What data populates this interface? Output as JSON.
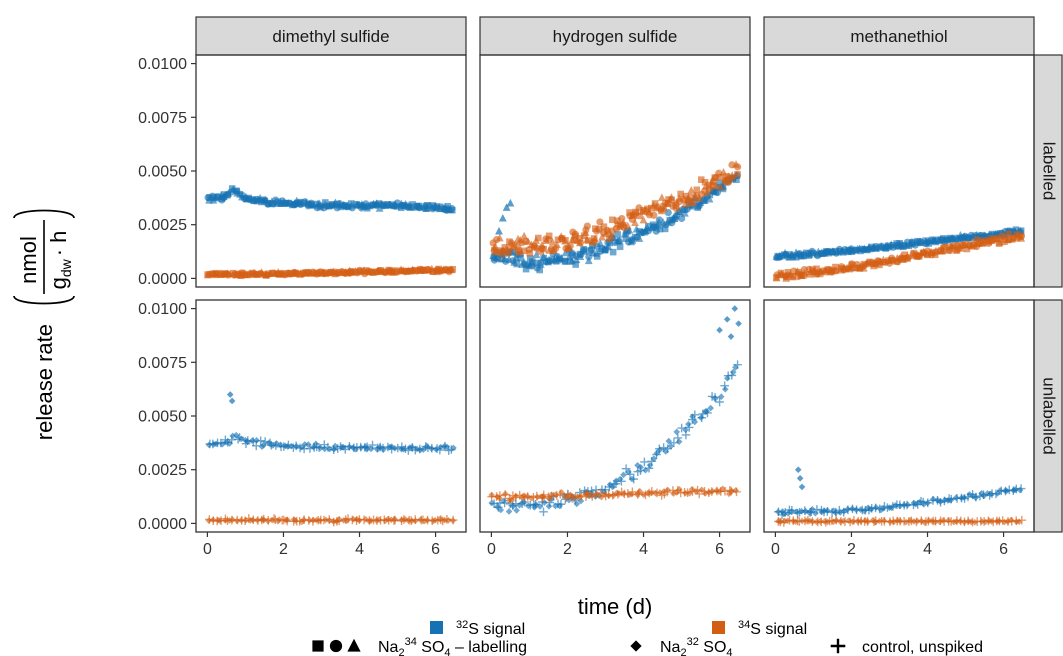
{
  "chart_data": {
    "type": "scatter",
    "facet_columns": [
      "dimethyl sulfide",
      "hydrogen sulfide",
      "methanethiol"
    ],
    "facet_rows": [
      "labelled",
      "unlabelled"
    ],
    "xlabel": "time (d)",
    "ylabel": {
      "prefix": "release rate",
      "numerator": "nmol",
      "denominator_main": "g",
      "denominator_sub": "dw",
      "denominator_tail": "· h"
    },
    "x_ticks": [
      "0",
      "2",
      "4",
      "6"
    ],
    "x_tick_values": [
      0,
      2,
      4,
      6
    ],
    "y_ticks": [
      "0.0000",
      "0.0025",
      "0.0050",
      "0.0075",
      "0.0100"
    ],
    "y_tick_values": [
      0,
      0.0025,
      0.005,
      0.0075,
      0.01
    ],
    "xlim": [
      -0.3,
      6.8
    ],
    "ylim": [
      -0.0004,
      0.0104
    ],
    "grid": false,
    "colors": {
      "s32": "#1672b3",
      "s34": "#d35e13"
    },
    "legend": {
      "position": "bottom",
      "color_entries": [
        {
          "key": "s32",
          "sup": "32",
          "text": "S signal"
        },
        {
          "key": "s34",
          "sup": "34",
          "text": "S signal"
        }
      ],
      "shape_entries": [
        {
          "shapes": [
            "square",
            "circle",
            "triangle"
          ],
          "prefix": "Na",
          "sub": "2",
          "sup": "34",
          "mid": " SO",
          "sub2": "4",
          "tail": " – labelling"
        },
        {
          "shapes": [
            "diamond"
          ],
          "prefix": "Na",
          "sub": "2",
          "sup": "32",
          "mid": " SO",
          "sub2": "4",
          "tail": ""
        },
        {
          "shapes": [
            "plus"
          ],
          "prefix": "control, unspiked",
          "sub": "",
          "sup": "",
          "mid": "",
          "sub2": "",
          "tail": ""
        }
      ]
    },
    "panels": [
      {
        "row": "labelled",
        "col": "dimethyl sulfide",
        "series": [
          {
            "color": "s32",
            "shapes": [
              "square",
              "circle",
              "triangle"
            ],
            "points": [
              [
                0,
                0.0037
              ],
              [
                0.5,
                0.0038
              ],
              [
                0.7,
                0.0042
              ],
              [
                1,
                0.0037
              ],
              [
                2,
                0.0035
              ],
              [
                3,
                0.0034
              ],
              [
                4,
                0.0034
              ],
              [
                5,
                0.0034
              ],
              [
                6,
                0.0033
              ],
              [
                6.5,
                0.0032
              ]
            ],
            "noise": 0.00018
          },
          {
            "color": "s34",
            "shapes": [
              "square",
              "circle",
              "triangle"
            ],
            "points": [
              [
                0,
                0.0002
              ],
              [
                2,
                0.00022
              ],
              [
                4,
                0.0003
              ],
              [
                6.5,
                0.0004
              ]
            ],
            "noise": 0.0001
          }
        ]
      },
      {
        "row": "labelled",
        "col": "hydrogen sulfide",
        "series": [
          {
            "color": "s32",
            "shapes": [
              "square",
              "circle",
              "triangle"
            ],
            "points": [
              [
                0,
                0.001
              ],
              [
                0.5,
                0.0012
              ],
              [
                1,
                0.0007
              ],
              [
                2,
                0.0009
              ],
              [
                3,
                0.0014
              ],
              [
                4,
                0.0022
              ],
              [
                5,
                0.003
              ],
              [
                6,
                0.0042
              ],
              [
                6.5,
                0.0048
              ]
            ],
            "noise": 0.0005
          },
          {
            "color": "s34",
            "shapes": [
              "square",
              "circle",
              "triangle"
            ],
            "points": [
              [
                0,
                0.0015
              ],
              [
                1,
                0.0015
              ],
              [
                2,
                0.0016
              ],
              [
                3,
                0.0022
              ],
              [
                4,
                0.003
              ],
              [
                5,
                0.0036
              ],
              [
                6,
                0.0045
              ],
              [
                6.5,
                0.005
              ]
            ],
            "noise": 0.0007
          }
        ]
      },
      {
        "row": "labelled",
        "col": "methanethiol",
        "series": [
          {
            "color": "s32",
            "shapes": [
              "square",
              "circle",
              "triangle"
            ],
            "points": [
              [
                0,
                0.001
              ],
              [
                2,
                0.0013
              ],
              [
                4,
                0.0017
              ],
              [
                6.5,
                0.0022
              ]
            ],
            "noise": 0.00016
          },
          {
            "color": "s34",
            "shapes": [
              "square",
              "circle",
              "triangle"
            ],
            "points": [
              [
                0,
                0.0001
              ],
              [
                2,
                0.0005
              ],
              [
                4,
                0.0012
              ],
              [
                6.5,
                0.002
              ]
            ],
            "noise": 0.00025
          }
        ]
      },
      {
        "row": "unlabelled",
        "col": "dimethyl sulfide",
        "series": [
          {
            "color": "s32",
            "shapes": [
              "diamond",
              "plus"
            ],
            "points": [
              [
                0,
                0.0037
              ],
              [
                0.6,
                0.0038
              ],
              [
                0.7,
                0.0041
              ],
              [
                1,
                0.0038
              ],
              [
                2,
                0.0036
              ],
              [
                4,
                0.0035
              ],
              [
                6.5,
                0.0035
              ]
            ],
            "noise": 0.0002
          },
          {
            "color": "s34",
            "shapes": [
              "diamond",
              "plus"
            ],
            "points": [
              [
                0,
                0.00015
              ],
              [
                6.5,
                0.00015
              ]
            ],
            "noise": 0.0001
          }
        ]
      },
      {
        "row": "unlabelled",
        "col": "hydrogen sulfide",
        "series": [
          {
            "color": "s32",
            "shapes": [
              "diamond",
              "plus"
            ],
            "points": [
              [
                0,
                0.0008
              ],
              [
                1,
                0.0008
              ],
              [
                2,
                0.0011
              ],
              [
                3,
                0.0016
              ],
              [
                4,
                0.0026
              ],
              [
                5,
                0.0042
              ],
              [
                6,
                0.006
              ],
              [
                6.5,
                0.0075
              ]
            ],
            "noise": 0.0005
          },
          {
            "color": "s34",
            "shapes": [
              "diamond",
              "plus"
            ],
            "points": [
              [
                0,
                0.0012
              ],
              [
                2,
                0.0013
              ],
              [
                4,
                0.0014
              ],
              [
                6.5,
                0.0015
              ]
            ],
            "noise": 0.0002
          }
        ]
      },
      {
        "row": "unlabelled",
        "col": "methanethiol",
        "series": [
          {
            "color": "s32",
            "shapes": [
              "diamond",
              "plus"
            ],
            "points": [
              [
                0,
                0.0005
              ],
              [
                2,
                0.0006
              ],
              [
                4,
                0.001
              ],
              [
                6.5,
                0.0016
              ]
            ],
            "noise": 0.00015
          },
          {
            "color": "s34",
            "shapes": [
              "diamond",
              "plus"
            ],
            "points": [
              [
                0,
                0.0001
              ],
              [
                6.5,
                0.0001
              ]
            ],
            "noise": 8e-05
          }
        ]
      }
    ],
    "annotations": [
      {
        "row": "labelled",
        "col": "hydrogen sulfide",
        "color": "s32",
        "shape": "triangle",
        "points": [
          [
            0.4,
            0.0033
          ],
          [
            0.5,
            0.0035
          ],
          [
            0.3,
            0.0028
          ],
          [
            0.2,
            0.0022
          ]
        ]
      },
      {
        "row": "unlabelled",
        "col": "dimethyl sulfide",
        "color": "s32",
        "shape": "diamond",
        "points": [
          [
            0.6,
            0.006
          ],
          [
            0.65,
            0.0057
          ]
        ]
      },
      {
        "row": "unlabelled",
        "col": "methanethiol",
        "color": "s32",
        "shape": "diamond",
        "points": [
          [
            0.6,
            0.0025
          ],
          [
            0.65,
            0.0021
          ],
          [
            0.7,
            0.0017
          ]
        ]
      },
      {
        "row": "unlabelled",
        "col": "hydrogen sulfide",
        "color": "s32",
        "shape": "diamond",
        "points": [
          [
            6.2,
            0.0095
          ],
          [
            6.4,
            0.01
          ],
          [
            6.0,
            0.009
          ],
          [
            6.5,
            0.0093
          ],
          [
            6.3,
            0.0087
          ]
        ]
      }
    ]
  }
}
